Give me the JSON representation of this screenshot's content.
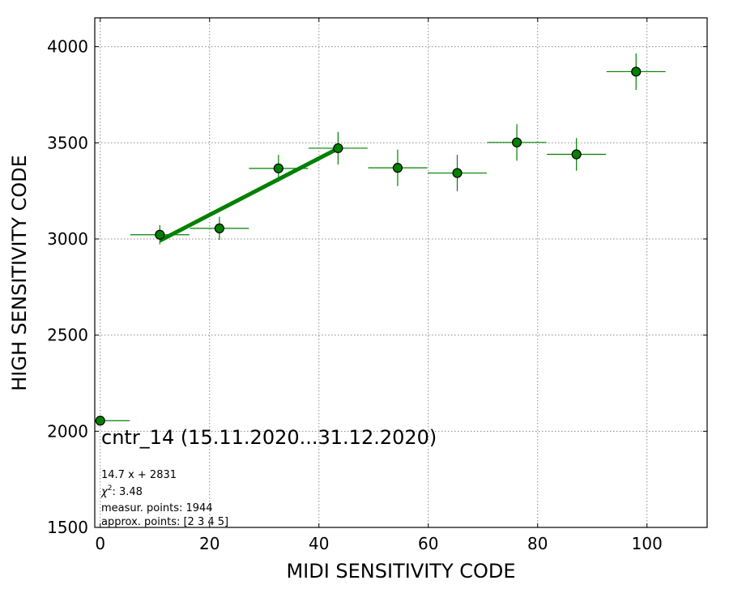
{
  "chart_data": {
    "type": "scatter",
    "xlabel": "MIDI SENSITIVITY CODE",
    "ylabel": "HIGH SENSITIVITY CODE",
    "xlim": [
      -1,
      111
    ],
    "ylim": [
      1500,
      4150
    ],
    "xticks": [
      0,
      20,
      40,
      60,
      80,
      100
    ],
    "yticks": [
      1500,
      2000,
      2500,
      3000,
      3500,
      4000
    ],
    "grid": true,
    "colors": {
      "series": "#008000",
      "marker_edge": "#000000"
    },
    "points": [
      {
        "x": 0,
        "y": 2055,
        "xerr": 5.4,
        "yerr": 0
      },
      {
        "x": 10.9,
        "y": 3022,
        "xerr": 5.4,
        "yerr": 50
      },
      {
        "x": 21.8,
        "y": 3055,
        "xerr": 5.4,
        "yerr": 60
      },
      {
        "x": 32.6,
        "y": 3367,
        "xerr": 5.4,
        "yerr": 70
      },
      {
        "x": 43.5,
        "y": 3472,
        "xerr": 5.4,
        "yerr": 85
      },
      {
        "x": 54.4,
        "y": 3370,
        "xerr": 5.4,
        "yerr": 95
      },
      {
        "x": 65.3,
        "y": 3343,
        "xerr": 5.4,
        "yerr": 95
      },
      {
        "x": 76.2,
        "y": 3502,
        "xerr": 5.4,
        "yerr": 95
      },
      {
        "x": 87.1,
        "y": 3440,
        "xerr": 5.4,
        "yerr": 85
      },
      {
        "x": 98.0,
        "y": 3870,
        "xerr": 5.4,
        "yerr": 95
      }
    ],
    "fit_line": {
      "slope": 14.7,
      "intercept": 2831,
      "x_range": [
        10.9,
        43.5
      ]
    },
    "annotations": {
      "title": "cntr_14 (15.11.2020...31.12.2020)",
      "equation": "14.7 x + 2831",
      "chi2_label": "χ",
      "chi2_sup": "2",
      "chi2_value": ": 3.48",
      "measur_points": "measur. points: 1944",
      "approx_points": "approx. points: [2 3 4 5]"
    }
  }
}
